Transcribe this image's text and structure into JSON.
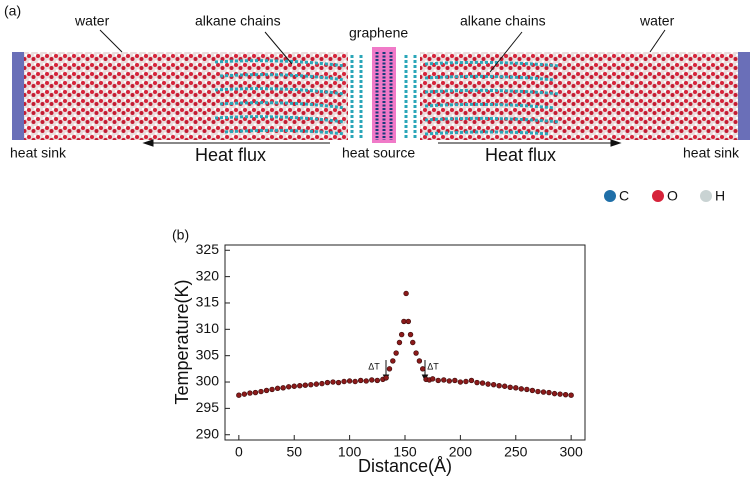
{
  "panel_a": {
    "label": "(a)",
    "water_left": "water",
    "chains_left": "alkane chains",
    "graphene": "graphene",
    "chains_right": "alkane chains",
    "water_right": "water",
    "sink_left": "heat sink",
    "flux_left": "Heat flux",
    "source": "heat source",
    "flux_right": "Heat flux",
    "sink_right": "heat sink",
    "legend": [
      {
        "name": "C",
        "color": "#1f6fa8"
      },
      {
        "name": "O",
        "color": "#d6233a"
      },
      {
        "name": "H",
        "color": "#c9d3d3"
      }
    ]
  },
  "chart_data": {
    "type": "scatter",
    "panel_label": "(b)",
    "x_label": "Distance(Å)",
    "y_label": "Temperature(K)",
    "annotations": [
      "ΔT",
      "ΔT"
    ],
    "color": "#8b1a1a",
    "x": [
      0,
      5,
      10,
      15,
      20,
      25,
      30,
      35,
      40,
      45,
      50,
      55,
      60,
      65,
      70,
      75,
      80,
      85,
      90,
      95,
      100,
      105,
      110,
      115,
      120,
      125,
      130,
      133,
      136,
      139,
      142,
      145,
      147,
      149,
      151,
      153,
      155,
      157,
      160,
      163,
      166,
      169,
      172,
      175,
      180,
      185,
      190,
      195,
      200,
      205,
      210,
      215,
      220,
      225,
      230,
      235,
      240,
      245,
      250,
      255,
      260,
      265,
      270,
      275,
      280,
      285,
      290,
      295,
      300
    ],
    "values": [
      297.5,
      297.7,
      297.9,
      298.0,
      298.2,
      298.4,
      298.6,
      298.8,
      298.9,
      299.1,
      299.2,
      299.3,
      299.4,
      299.5,
      299.6,
      299.7,
      299.9,
      300.0,
      299.9,
      300.1,
      300.2,
      300.1,
      300.3,
      300.2,
      300.4,
      300.3,
      300.5,
      300.8,
      302.5,
      304.0,
      305.5,
      307.5,
      309.0,
      311.5,
      316.8,
      311.5,
      309.0,
      307.5,
      305.5,
      304.0,
      302.5,
      300.5,
      300.4,
      300.6,
      300.3,
      300.4,
      300.2,
      300.3,
      300.0,
      300.1,
      300.3,
      299.9,
      299.8,
      299.6,
      299.5,
      299.3,
      299.2,
      299.0,
      298.9,
      298.7,
      298.6,
      298.4,
      298.2,
      298.1,
      298.0,
      297.8,
      297.7,
      297.6,
      297.5
    ],
    "xlim": [
      -12.5,
      312.5
    ],
    "ylim": [
      289,
      326
    ],
    "xticks": [
      0,
      50,
      100,
      150,
      200,
      250,
      300
    ],
    "yticks": [
      290,
      295,
      300,
      305,
      310,
      315,
      320,
      325
    ]
  }
}
